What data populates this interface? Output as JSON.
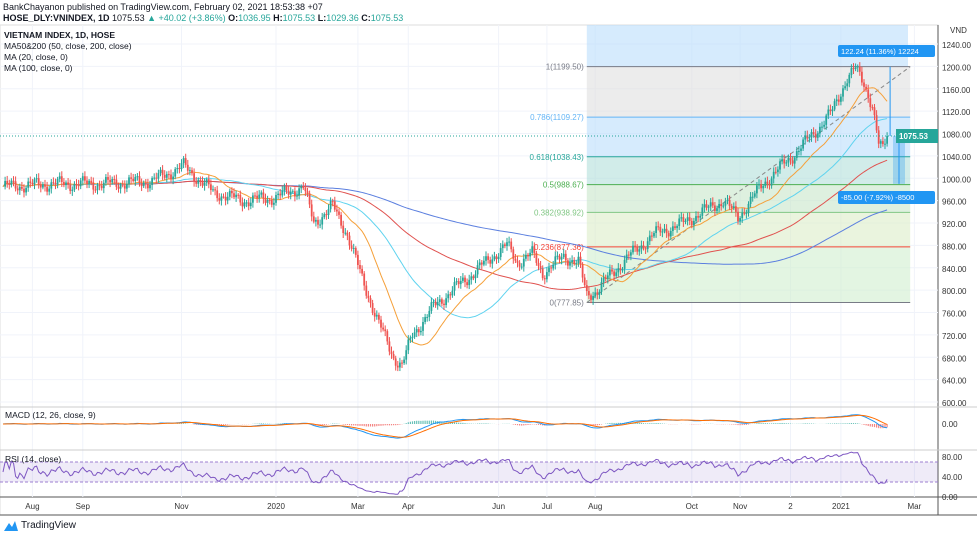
{
  "header": {
    "publisher_line": "BankChayanon published on TradingView.com, February 02, 2021 18:53:38 +07",
    "symbol": "HOSE_DLY:VNINDEX, 1D",
    "last": "1075.53",
    "change": "▲ +40.02 (+3.86%)",
    "o_label": "O:",
    "o": "1036.95",
    "h_label": "H:",
    "h": "1075.53",
    "l_label": "L:",
    "l": "1029.36",
    "c_label": "C:",
    "c": "1075.53"
  },
  "legend": [
    "VIETNAM INDEX, 1D, HOSE",
    "MA50&200 (50, close, 200, close)",
    "MA (20, close, 0)",
    "MA (100, close, 0)"
  ],
  "macd_label": "MACD (12, 26, close, 9)",
  "rsi_label": "RSI (14, close)",
  "footer": {
    "brand": "TradingView"
  },
  "colors": {
    "up": "#26a69a",
    "down": "#ef5350",
    "ma20": "#f5a03a",
    "ma50": "#5fd3ef",
    "ma100": "#e0524f",
    "ma200": "#5b7fdf",
    "accent": "#2196f3"
  },
  "chart_data": {
    "type": "candlestick",
    "title": "VIETNAM INDEX, 1D, HOSE",
    "currency": "VND",
    "ylim": [
      600,
      1240
    ],
    "y_ticks": [
      "1240.00",
      "1200.00",
      "1160.00",
      "1120.00",
      "1080.00",
      "1040.00",
      "1000.00",
      "960.00",
      "920.00",
      "880.00",
      "840.00",
      "800.00",
      "760.00",
      "720.00",
      "680.00",
      "640.00",
      "600.00"
    ],
    "x_ticks": [
      {
        "label": "Aug",
        "t": 14
      },
      {
        "label": "Sep",
        "t": 38
      },
      {
        "label": "Nov",
        "t": 85
      },
      {
        "label": "2020",
        "t": 130
      },
      {
        "label": "Mar",
        "t": 169
      },
      {
        "label": "Apr",
        "t": 193
      },
      {
        "label": "Jun",
        "t": 236
      },
      {
        "label": "Jul",
        "t": 259
      },
      {
        "label": "Aug",
        "t": 282
      },
      {
        "label": "Oct",
        "t": 328
      },
      {
        "label": "Nov",
        "t": 351
      },
      {
        "label": "2",
        "t": 375
      },
      {
        "label": "2021",
        "t": 399
      },
      {
        "label": "Mar",
        "t": 434
      }
    ],
    "close_keypoints": [
      [
        0,
        985
      ],
      [
        24,
        990
      ],
      [
        48,
        990
      ],
      [
        71,
        995
      ],
      [
        86,
        1022
      ],
      [
        100,
        975
      ],
      [
        114,
        960
      ],
      [
        129,
        965
      ],
      [
        143,
        985
      ],
      [
        148,
        920
      ],
      [
        157,
        950
      ],
      [
        164,
        900
      ],
      [
        171,
        820
      ],
      [
        179,
        740
      ],
      [
        186,
        680
      ],
      [
        190,
        665
      ],
      [
        195,
        720
      ],
      [
        205,
        770
      ],
      [
        214,
        800
      ],
      [
        224,
        830
      ],
      [
        233,
        860
      ],
      [
        240,
        880
      ],
      [
        245,
        850
      ],
      [
        252,
        865
      ],
      [
        257,
        830
      ],
      [
        267,
        860
      ],
      [
        274,
        850
      ],
      [
        278,
        790
      ],
      [
        283,
        800
      ],
      [
        290,
        830
      ],
      [
        298,
        860
      ],
      [
        310,
        900
      ],
      [
        324,
        920
      ],
      [
        333,
        940
      ],
      [
        343,
        960
      ],
      [
        350,
        930
      ],
      [
        362,
        990
      ],
      [
        376,
        1040
      ],
      [
        386,
        1080
      ],
      [
        395,
        1120
      ],
      [
        402,
        1180
      ],
      [
        406,
        1195
      ],
      [
        410,
        1170
      ],
      [
        414,
        1130
      ],
      [
        417,
        1060
      ],
      [
        419,
        1050
      ],
      [
        421,
        1075.53
      ]
    ],
    "last_price": "1075.53",
    "fibonacci": [
      {
        "label": "1(1199.50)",
        "v": 1199.5,
        "color": "#787b86"
      },
      {
        "label": "0.786(1109.27)",
        "v": 1109.27,
        "color": "#64b5f6"
      },
      {
        "label": "0.618(1038.43)",
        "v": 1038.43,
        "color": "#26a69a"
      },
      {
        "label": "0.5(988.67)",
        "v": 988.67,
        "color": "#4caf50"
      },
      {
        "label": "0.382(938.92)",
        "v": 938.92,
        "color": "#81c784"
      },
      {
        "label": "0.236(877.36)",
        "v": 877.36,
        "color": "#f44336"
      },
      {
        "label": "0(777.85)",
        "v": 777.85,
        "color": "#787b86"
      }
    ],
    "measure_up": "122.24 (11.36%) 12224",
    "measure_down": "-85.00 (-7.92%) -8500",
    "macd_ticks": [
      "0.00"
    ],
    "rsi_ticks": [
      "80.00",
      "40.00",
      "0.00"
    ],
    "rsi_band": [
      30,
      70
    ]
  }
}
